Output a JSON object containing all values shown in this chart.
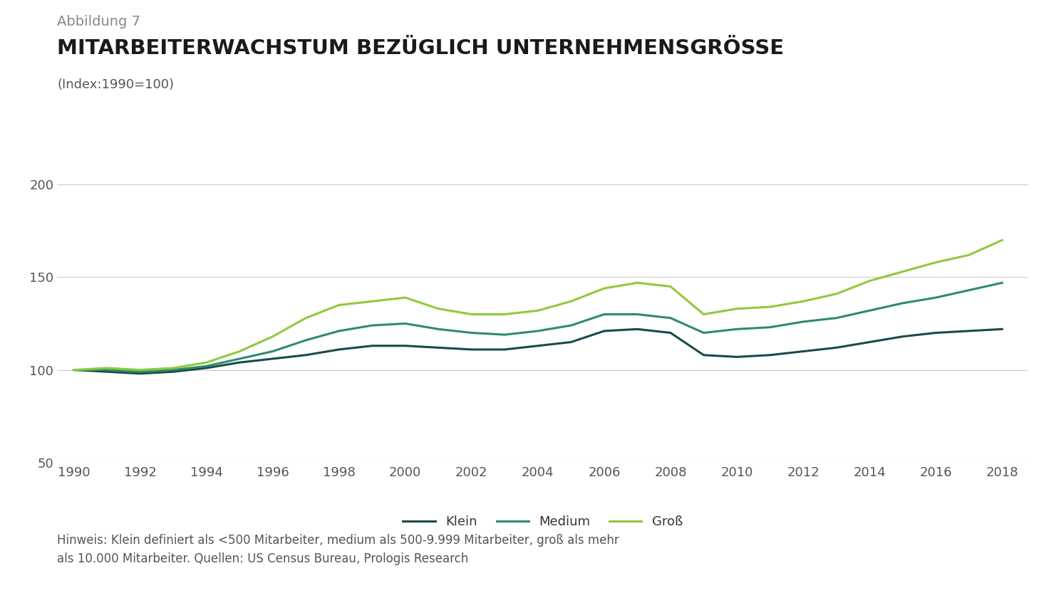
{
  "title_line1": "Abbildung 7",
  "title_line2": "MITARBEITERWACHSTUM BEZÜGLICH UNTERNEHMENSGRÖSSE",
  "subtitle": "(Index:1990=100)",
  "note": "Hinweis: Klein definiert als <500 Mitarbeiter, medium als 500-9.999 Mitarbeiter, groß als mehr\nals 10.000 Mitarbeiter. Quellen: US Census Bureau, Prologis Research",
  "years": [
    1990,
    1991,
    1992,
    1993,
    1994,
    1995,
    1996,
    1997,
    1998,
    1999,
    2000,
    2001,
    2002,
    2003,
    2004,
    2005,
    2006,
    2007,
    2008,
    2009,
    2010,
    2011,
    2012,
    2013,
    2014,
    2015,
    2016,
    2017,
    2018
  ],
  "klein": [
    100,
    99,
    98,
    99,
    101,
    104,
    106,
    108,
    111,
    113,
    113,
    112,
    111,
    111,
    113,
    115,
    121,
    122,
    120,
    108,
    107,
    108,
    110,
    112,
    115,
    118,
    120,
    121,
    122
  ],
  "medium": [
    100,
    100,
    99,
    100,
    102,
    106,
    110,
    116,
    121,
    124,
    125,
    122,
    120,
    119,
    121,
    124,
    130,
    130,
    128,
    120,
    122,
    123,
    126,
    128,
    132,
    136,
    139,
    143,
    147
  ],
  "gross": [
    100,
    101,
    100,
    101,
    104,
    110,
    118,
    128,
    135,
    137,
    139,
    133,
    130,
    130,
    132,
    137,
    144,
    147,
    145,
    130,
    133,
    134,
    137,
    141,
    148,
    153,
    158,
    162,
    170
  ],
  "color_klein": "#1a4a4a",
  "color_medium": "#2e8b6b",
  "color_gross": "#8fca3c",
  "ylim": [
    50,
    210
  ],
  "yticks": [
    50,
    100,
    150,
    200
  ],
  "xticks": [
    1990,
    1992,
    1994,
    1996,
    1998,
    2000,
    2002,
    2004,
    2006,
    2008,
    2010,
    2012,
    2014,
    2016,
    2018
  ],
  "background_color": "#ffffff",
  "grid_color": "#cccccc",
  "legend_labels": [
    "Klein",
    "Medium",
    "Groß"
  ],
  "line_width": 2.2,
  "title1_fontsize": 14,
  "title2_fontsize": 21,
  "subtitle_fontsize": 13,
  "tick_fontsize": 13,
  "legend_fontsize": 13,
  "note_fontsize": 12
}
